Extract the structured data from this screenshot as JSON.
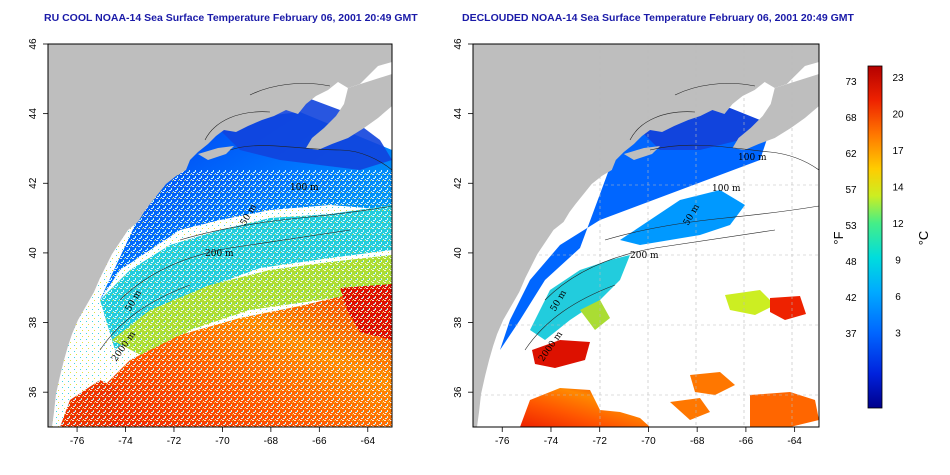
{
  "panels": [
    {
      "title": "RU COOL NOAA-14 Sea Surface Temperature February 06, 2001 20:49 GMT",
      "isobaths": [
        "100 m",
        "200 m",
        "50 m",
        "2000 m",
        "50 m"
      ]
    },
    {
      "title": "DECLOUDED NOAA-14 Sea Surface Temperature February 06, 2001 20:49 GMT",
      "isobaths": [
        "100 m",
        "100 m",
        "200 m",
        "50 m",
        "2000 m",
        "50 m"
      ]
    }
  ],
  "map": {
    "lon_ticks": [
      "-76",
      "-74",
      "-72",
      "-70",
      "-68",
      "-66",
      "-64"
    ],
    "lat_ticks": [
      "46",
      "44",
      "42",
      "40",
      "38",
      "36"
    ],
    "lon_range": [
      -77.2,
      -63.0
    ],
    "lat_range": [
      35.0,
      46.0
    ],
    "land_color": "#bebebe",
    "ocean_no_data_color": "#ffffff"
  },
  "colorbar": {
    "unit_f": "°F",
    "unit_c": "°C",
    "f_ticks": [
      "73",
      "68",
      "62",
      "57",
      "53",
      "48",
      "42",
      "37"
    ],
    "c_ticks": [
      "23",
      "20",
      "17",
      "14",
      "12",
      "9",
      "6",
      "3"
    ],
    "colors": [
      "#00008b",
      "#0022dd",
      "#0066ff",
      "#00aaff",
      "#00dddd",
      "#44ee88",
      "#ccee22",
      "#ffcc00",
      "#ff7700",
      "#ee2200",
      "#b40000"
    ]
  }
}
